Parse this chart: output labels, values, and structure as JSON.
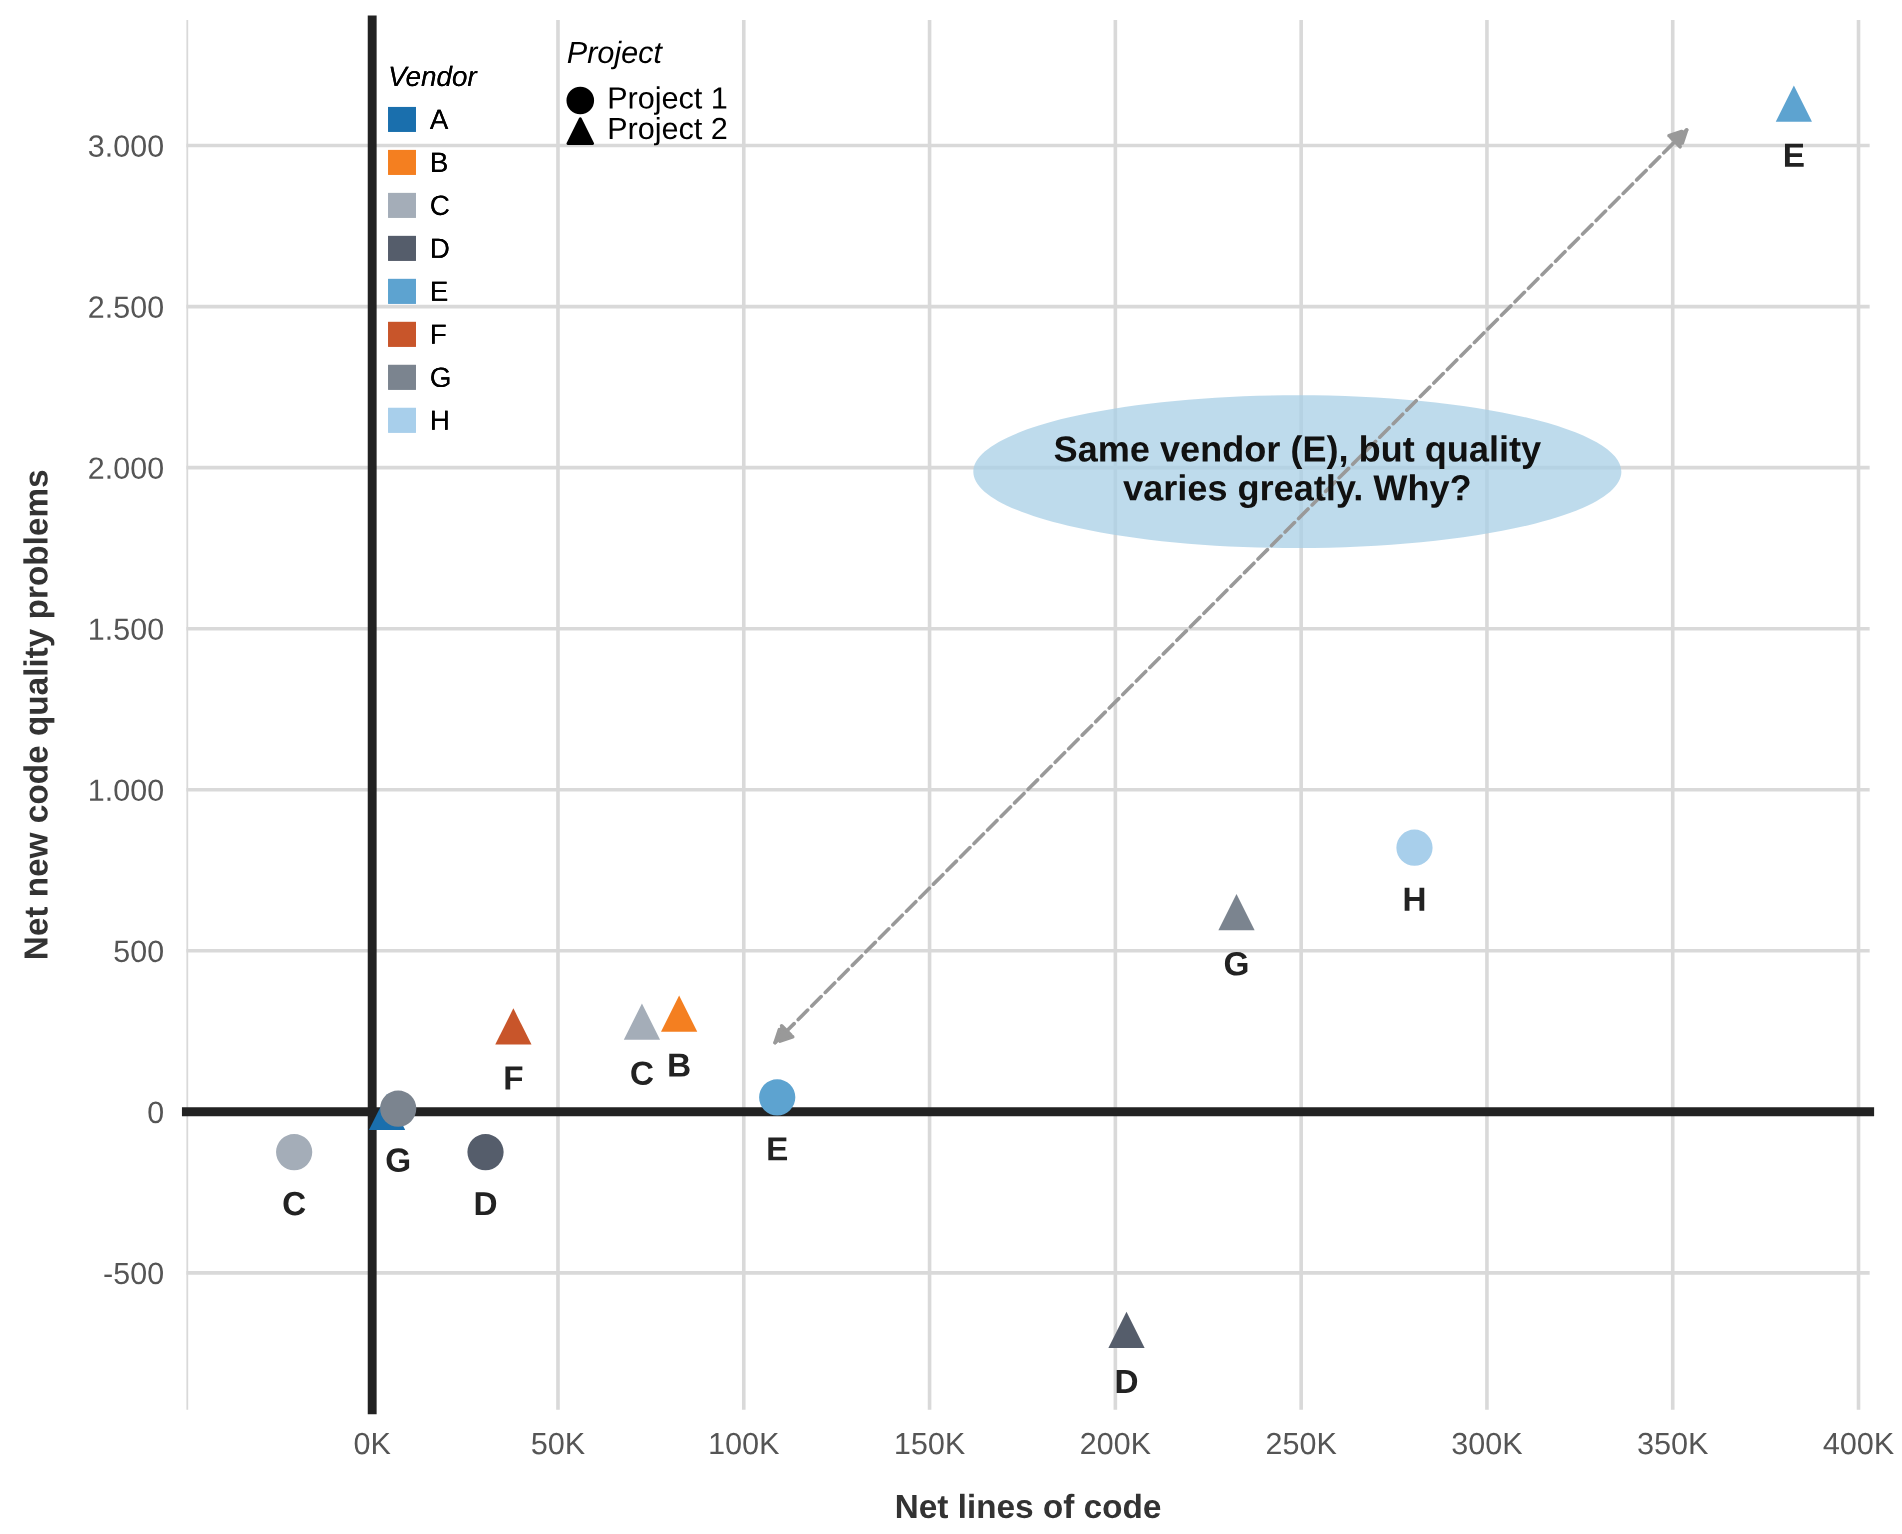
{
  "chart_data": {
    "type": "scatter",
    "xlabel": "Net lines of code",
    "ylabel": "Net new code quality problems",
    "xlim": [
      -50000,
      403000
    ],
    "xticks": [
      {
        "value": -50000,
        "label": null
      },
      {
        "value": 0,
        "label": "0K"
      },
      {
        "value": 50000,
        "label": "50K"
      },
      {
        "value": 100000,
        "label": "100K"
      },
      {
        "value": 150000,
        "label": "150K"
      },
      {
        "value": 200000,
        "label": "200K"
      },
      {
        "value": 250000,
        "label": "250K"
      },
      {
        "value": 300000,
        "label": "300K"
      },
      {
        "value": 350000,
        "label": "350K"
      },
      {
        "value": 400000,
        "label": "400K"
      }
    ],
    "ylim": [
      -925,
      3390
    ],
    "yticks": [
      -500,
      0,
      500,
      {
        "value": 1000,
        "label": "1.000"
      },
      {
        "value": 1500,
        "label": "1.500"
      },
      {
        "value": 2000,
        "label": "2.000"
      },
      {
        "value": 2500,
        "label": "2.500"
      },
      {
        "value": 3000,
        "label": "3.000"
      }
    ],
    "grid": true,
    "legend": "top left",
    "marker": [
      "circle",
      "triangle"
    ],
    "legend_title": [
      "Vendor",
      "Project"
    ],
    "series": [
      {
        "name": "A",
        "color": "#1a6fad",
        "marker": [
          "triangle"
        ],
        "x": [
          4000
        ],
        "values": [
          0
        ],
        "value_labels": [
          null
        ]
      },
      {
        "name": "B",
        "color": "#f47f20",
        "marker": [
          "triangle"
        ],
        "x": [
          82600
        ],
        "values": [
          305
        ],
        "value_labels": [
          "B"
        ]
      },
      {
        "name": "C",
        "color": "#a4adb8",
        "marker": [
          "circle",
          "triangle"
        ],
        "x": [
          -21000,
          72600
        ],
        "values": [
          -125,
          280
        ],
        "value_labels": [
          "C",
          "C"
        ]
      },
      {
        "name": "D",
        "color": "#555d6b",
        "marker": [
          "circle",
          "triangle"
        ],
        "x": [
          30500,
          203000
        ],
        "values": [
          -125,
          -677
        ],
        "value_labels": [
          "D",
          "D"
        ]
      },
      {
        "name": "E",
        "color": "#5da3d0",
        "marker": [
          "circle",
          "triangle"
        ],
        "x": [
          109000,
          382600
        ],
        "values": [
          45,
          3130
        ],
        "value_labels": [
          "E",
          "E"
        ]
      },
      {
        "name": "F",
        "color": "#c8552a",
        "marker": [
          "triangle"
        ],
        "x": [
          38000
        ],
        "values": [
          265
        ],
        "value_labels": [
          "F"
        ]
      },
      {
        "name": "G",
        "color": "#7b848f",
        "marker": [
          "circle",
          "triangle"
        ],
        "x": [
          7000,
          232600
        ],
        "values": [
          10,
          620
        ],
        "value_labels": [
          "G",
          "G"
        ]
      },
      {
        "name": "H",
        "color": "#a8cfeb",
        "marker": [
          "circle"
        ],
        "x": [
          280500
        ],
        "values": [
          820
        ],
        "value_labels": [
          "H"
        ]
      }
    ],
    "annotations": [
      "Same vendor (E), but quality\nvaries greatly. Why?",
      "Project 1",
      "Project 2"
    ]
  }
}
